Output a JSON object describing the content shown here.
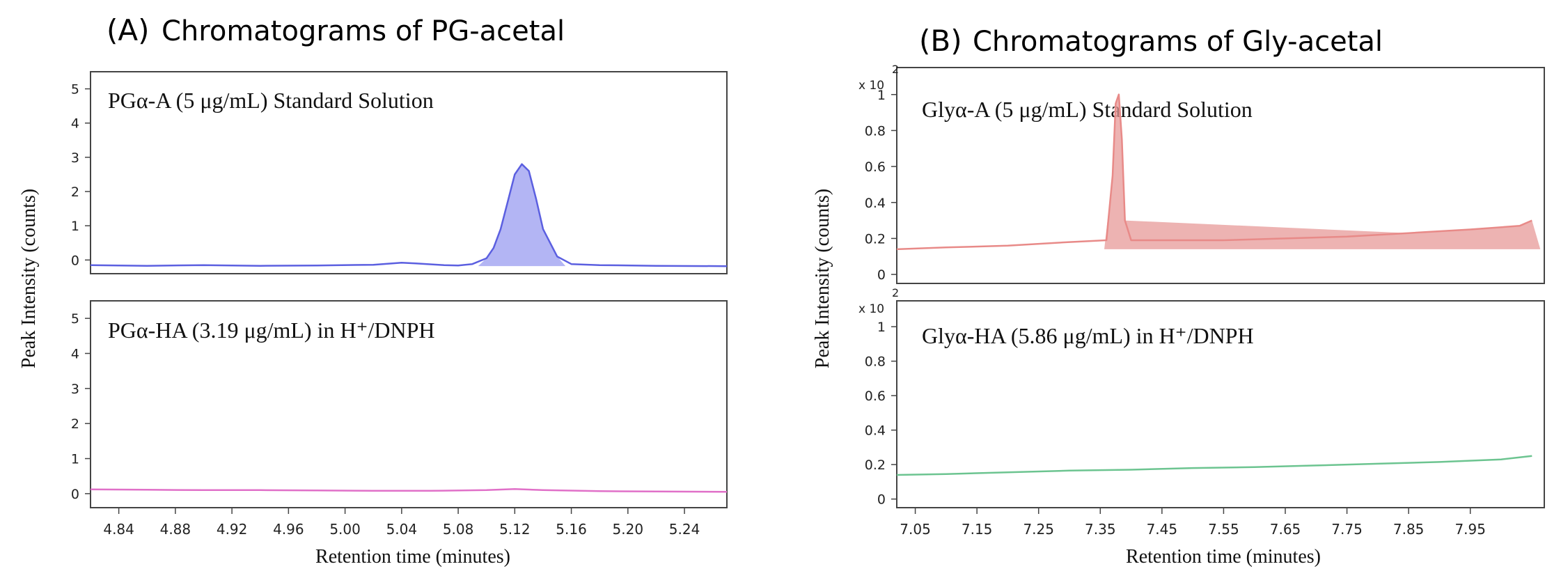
{
  "colors": {
    "pg_std": "#5b5fe0",
    "pg_std_fill": "#9a9cf0",
    "pg_sample": "#e070c8",
    "gly_std": "#e88a88",
    "gly_std_fill": "#e79a98",
    "gly_sample": "#6cc490"
  },
  "panels": {
    "A": {
      "label": "(A)",
      "title": "Chromatograms of PG-acetal",
      "ylabel": "Peak Intensity (counts)",
      "xlabel": "Retention time (minutes)"
    },
    "B": {
      "label": "(B)",
      "title": "Chromatograms of Gly-acetal",
      "ylabel": "Peak Intensity (counts)",
      "xlabel": "Retention time (minutes)"
    }
  },
  "chart_data": [
    {
      "type": "line",
      "panel": "A",
      "subplot": "top",
      "title": "PGα-A (5 μg/mL) Standard Solution",
      "xlim": [
        4.82,
        5.27
      ],
      "ylim": [
        -0.4,
        5.5
      ],
      "xticks": [
        "4.84",
        "4.88",
        "4.92",
        "4.96",
        "5.00",
        "5.04",
        "5.08",
        "5.12",
        "5.16",
        "5.20",
        "5.24"
      ],
      "yticks": [
        "0",
        "1",
        "2",
        "3",
        "4",
        "5"
      ],
      "x": [
        4.82,
        4.86,
        4.9,
        4.94,
        4.98,
        5.02,
        5.04,
        5.05,
        5.07,
        5.08,
        5.09,
        5.1,
        5.105,
        5.11,
        5.115,
        5.12,
        5.125,
        5.13,
        5.135,
        5.14,
        5.15,
        5.16,
        5.18,
        5.22,
        5.27
      ],
      "values": [
        -0.15,
        -0.17,
        -0.15,
        -0.17,
        -0.16,
        -0.14,
        -0.08,
        -0.1,
        -0.15,
        -0.16,
        -0.12,
        0.05,
        0.35,
        0.9,
        1.7,
        2.5,
        2.8,
        2.6,
        1.8,
        0.9,
        0.1,
        -0.12,
        -0.15,
        -0.17,
        -0.18
      ],
      "filled": true
    },
    {
      "type": "line",
      "panel": "A",
      "subplot": "bottom",
      "title": "PGα-HA (3.19 μg/mL) in H⁺/DNPH",
      "xlim": [
        4.82,
        5.27
      ],
      "ylim": [
        -0.4,
        5.5
      ],
      "xticks": [
        "4.84",
        "4.88",
        "4.92",
        "4.96",
        "5.00",
        "5.04",
        "5.08",
        "5.12",
        "5.16",
        "5.20",
        "5.24"
      ],
      "yticks": [
        "0",
        "1",
        "2",
        "3",
        "4",
        "5"
      ],
      "x": [
        4.82,
        4.86,
        4.9,
        4.94,
        4.98,
        5.02,
        5.06,
        5.1,
        5.12,
        5.14,
        5.18,
        5.22,
        5.27
      ],
      "values": [
        0.12,
        0.11,
        0.1,
        0.1,
        0.09,
        0.08,
        0.08,
        0.1,
        0.13,
        0.1,
        0.07,
        0.06,
        0.05
      ]
    },
    {
      "type": "line",
      "panel": "B",
      "subplot": "top",
      "title": "Glyα-A (5 μg/mL) Standard Solution",
      "scale_label": "x 10",
      "scale_exp": "2",
      "xlim": [
        7.02,
        8.07
      ],
      "ylim": [
        -0.05,
        1.15
      ],
      "xticks": [
        "7.05",
        "7.15",
        "7.25",
        "7.35",
        "7.45",
        "7.55",
        "7.65",
        "7.75",
        "7.85",
        "7.95"
      ],
      "yticks": [
        "0",
        "0.2",
        "0.4",
        "0.6",
        "0.8",
        "1"
      ],
      "x": [
        7.02,
        7.1,
        7.2,
        7.3,
        7.36,
        7.37,
        7.375,
        7.38,
        7.385,
        7.39,
        7.4,
        7.45,
        7.55,
        7.65,
        7.75,
        7.85,
        7.95,
        8.03,
        8.05
      ],
      "values": [
        0.14,
        0.15,
        0.16,
        0.18,
        0.19,
        0.55,
        0.95,
        1.0,
        0.75,
        0.3,
        0.19,
        0.19,
        0.19,
        0.2,
        0.21,
        0.23,
        0.25,
        0.27,
        0.3
      ],
      "filled": true
    },
    {
      "type": "line",
      "panel": "B",
      "subplot": "bottom",
      "title": "Glyα-HA (5.86 μg/mL) in H⁺/DNPH",
      "scale_label": "x 10",
      "scale_exp": "2",
      "xlim": [
        7.02,
        8.07
      ],
      "ylim": [
        -0.05,
        1.15
      ],
      "xticks": [
        "7.05",
        "7.15",
        "7.25",
        "7.35",
        "7.45",
        "7.55",
        "7.65",
        "7.75",
        "7.85",
        "7.95"
      ],
      "yticks": [
        "0",
        "0.2",
        "0.4",
        "0.6",
        "0.8",
        "1"
      ],
      "x": [
        7.02,
        7.1,
        7.2,
        7.3,
        7.4,
        7.5,
        7.6,
        7.7,
        7.8,
        7.9,
        8.0,
        8.05
      ],
      "values": [
        0.14,
        0.145,
        0.155,
        0.165,
        0.17,
        0.18,
        0.185,
        0.195,
        0.205,
        0.215,
        0.23,
        0.25
      ]
    }
  ]
}
